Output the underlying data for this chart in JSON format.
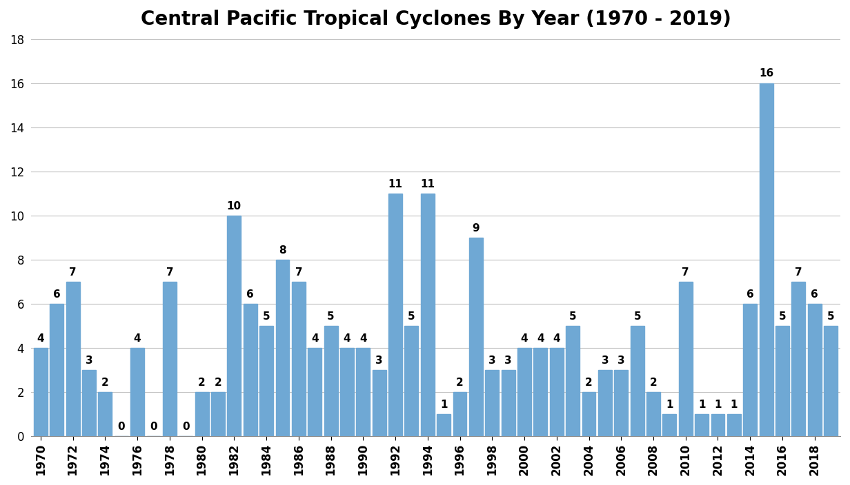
{
  "title": "Central Pacific Tropical Cyclones By Year (1970 - 2019)",
  "years": [
    1970,
    1971,
    1972,
    1973,
    1974,
    1975,
    1976,
    1977,
    1978,
    1979,
    1980,
    1981,
    1982,
    1983,
    1984,
    1985,
    1986,
    1987,
    1988,
    1989,
    1990,
    1991,
    1992,
    1993,
    1994,
    1995,
    1996,
    1997,
    1998,
    1999,
    2000,
    2001,
    2002,
    2003,
    2004,
    2005,
    2006,
    2007,
    2008,
    2009,
    2010,
    2011,
    2012,
    2013,
    2014,
    2015,
    2016,
    2017,
    2018,
    2019
  ],
  "values": [
    4,
    6,
    7,
    3,
    2,
    0,
    4,
    0,
    7,
    0,
    2,
    2,
    10,
    6,
    5,
    8,
    7,
    4,
    5,
    4,
    4,
    3,
    11,
    5,
    11,
    1,
    2,
    9,
    3,
    3,
    4,
    4,
    4,
    5,
    2,
    3,
    3,
    5,
    2,
    1,
    7,
    1,
    1,
    1,
    6,
    16,
    5,
    7,
    6,
    5
  ],
  "bar_color": "#6fa8d4",
  "ylim": [
    0,
    18
  ],
  "yticks": [
    0,
    2,
    4,
    6,
    8,
    10,
    12,
    14,
    16,
    18
  ],
  "title_fontsize": 20,
  "tick_fontsize": 12,
  "value_label_fontsize": 11,
  "background_color": "#ffffff",
  "grid_color": "#c0c0c0"
}
